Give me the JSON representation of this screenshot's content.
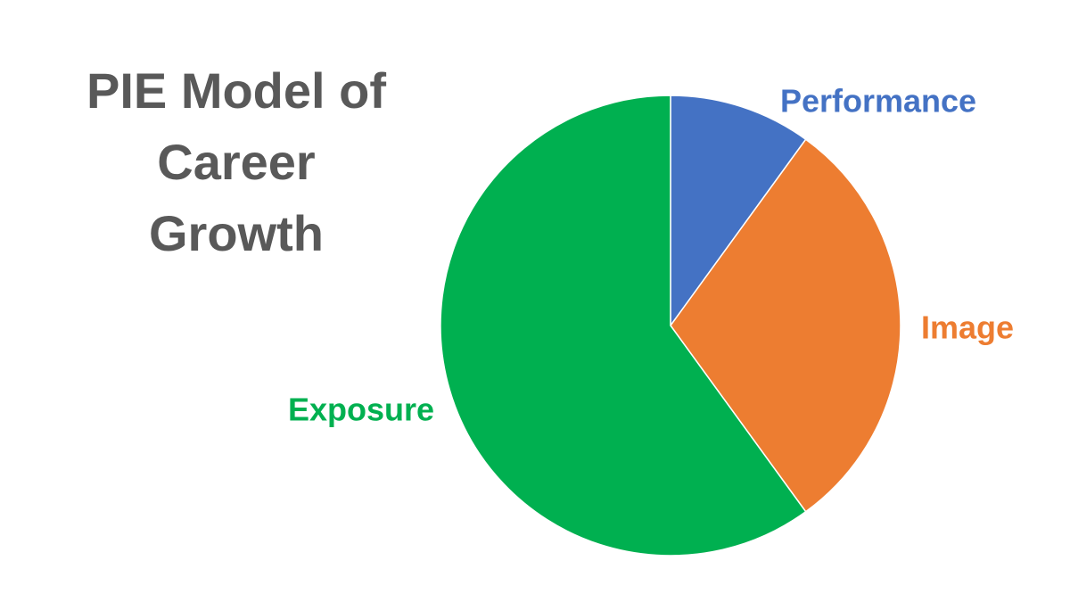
{
  "chart_data": {
    "type": "pie",
    "title": "PIE Model of Career Growth",
    "categories": [
      "Performance",
      "Image",
      "Exposure"
    ],
    "values": [
      10,
      30,
      60
    ],
    "colors": [
      "#4472c4",
      "#ed7d31",
      "#00b050"
    ]
  }
}
